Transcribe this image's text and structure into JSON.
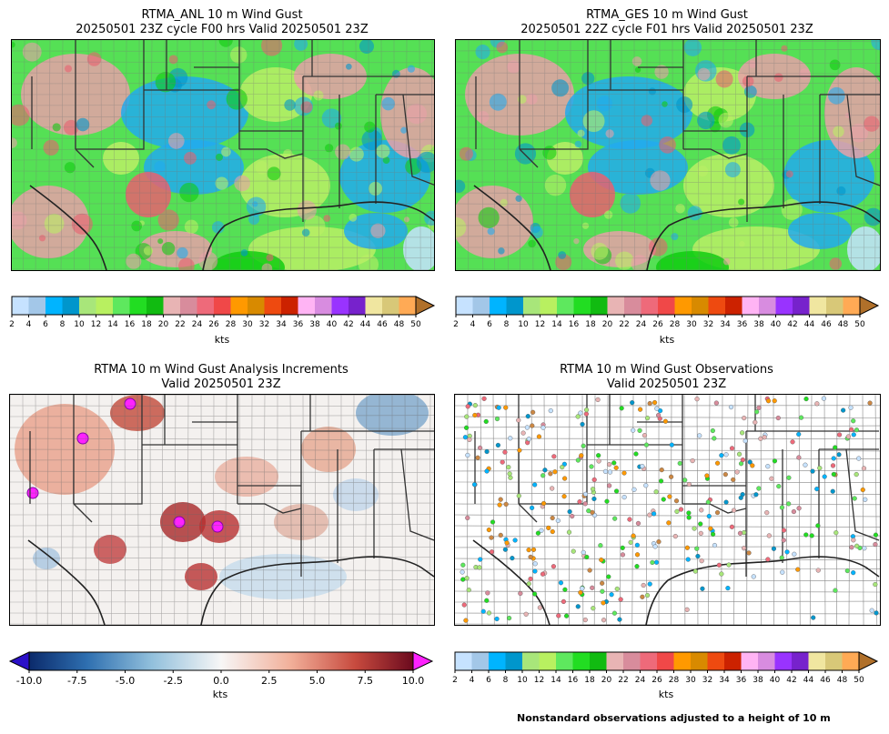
{
  "panels": {
    "anl": {
      "title_line1": "RTMA_ANL 10 m Wind Gust",
      "title_line2": "20250501 23Z cycle F00 hrs Valid 20250501 23Z"
    },
    "ges": {
      "title_line1": "RTMA_GES 10 m Wind Gust",
      "title_line2": "20250501 22Z cycle F01 hrs Valid 20250501 23Z"
    },
    "inc": {
      "title_line1": "RTMA 10 m Wind Gust Analysis Increments",
      "title_line2": "Valid 20250501 23Z"
    },
    "obs": {
      "title_line1": "RTMA 10 m Wind Gust Observations",
      "title_line2": "Valid 20250501 23Z"
    }
  },
  "gust_colorbar": {
    "unit_label": "kts",
    "ticks": [
      "2",
      "4",
      "6",
      "8",
      "10",
      "12",
      "14",
      "16",
      "18",
      "20",
      "22",
      "24",
      "26",
      "28",
      "30",
      "32",
      "34",
      "36",
      "38",
      "40",
      "42",
      "44",
      "46",
      "48",
      "50"
    ],
    "colors": [
      "#c6e2ff",
      "#a3c7e8",
      "#00b4ff",
      "#0096cc",
      "#a8e67a",
      "#b8f060",
      "#5ee85e",
      "#22dd22",
      "#11bb11",
      "#e8b4b4",
      "#d88c9c",
      "#ee6a7a",
      "#f04848",
      "#ff9900",
      "#d88a00",
      "#ee4a10",
      "#cc2200",
      "#ffb4f4",
      "#d88ce0",
      "#9933ff",
      "#7722cc",
      "#f0e6a0",
      "#d8c878",
      "#ffaa55",
      "#cc8844"
    ],
    "extend_color": "#b0702a"
  },
  "increment_colorbar": {
    "unit_label": "kts",
    "ticks": [
      "-10.0",
      "-7.5",
      "-5.0",
      "-2.5",
      "0.0",
      "2.5",
      "5.0",
      "7.5",
      "10.0"
    ],
    "min_extend_color": "#2b10c8",
    "max_extend_color": "#ff22ff"
  },
  "footnote": "Nonstandard observations adjusted to a height of 10 m"
}
